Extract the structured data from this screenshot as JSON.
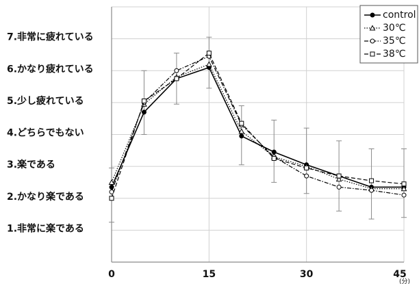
{
  "chart_data": {
    "type": "line",
    "title": "",
    "xlabel": "",
    "ylabel": "",
    "x_unit_label": "(分)",
    "x": [
      0,
      5,
      10,
      15,
      20,
      25,
      30,
      35,
      40,
      45
    ],
    "xlim": [
      0,
      45
    ],
    "ylim": [
      0,
      8
    ],
    "x_ticks": [
      "0",
      "15",
      "30",
      "45"
    ],
    "x_tick_values": [
      0,
      15,
      30,
      45
    ],
    "y_ticks": [
      {
        "value": 7,
        "label": "7.非常に疲れている"
      },
      {
        "value": 6,
        "label": "6.かなり疲れている"
      },
      {
        "value": 5,
        "label": "5.少し疲れている"
      },
      {
        "value": 4,
        "label": "4.どちらでもない"
      },
      {
        "value": 3,
        "label": "3.楽である"
      },
      {
        "value": 2,
        "label": "2.かなり楽である"
      },
      {
        "value": 1,
        "label": "1.非常に楽である"
      }
    ],
    "grid": true,
    "legend_position": "top-right",
    "series": [
      {
        "name": "control",
        "style": "solid",
        "marker": "filled-circle",
        "color": "#000000",
        "values": [
          2.35,
          4.7,
          5.75,
          6.1,
          3.95,
          3.45,
          3.05,
          2.7,
          2.35,
          2.35
        ]
      },
      {
        "name": "30℃",
        "style": "dotted",
        "marker": "triangle",
        "color": "#000000",
        "values": [
          2.5,
          4.95,
          5.8,
          6.2,
          4.1,
          3.3,
          3.0,
          2.6,
          2.3,
          2.3
        ]
      },
      {
        "name": "35℃",
        "style": "dashdot",
        "marker": "open-circle",
        "color": "#000000",
        "values": [
          2.2,
          5.0,
          6.0,
          6.45,
          4.3,
          3.3,
          2.7,
          2.35,
          2.25,
          2.1
        ]
      },
      {
        "name": "38℃",
        "style": "dashed",
        "marker": "open-square",
        "color": "#000000",
        "values": [
          2.0,
          5.05,
          5.75,
          6.55,
          4.35,
          3.25,
          2.95,
          2.7,
          2.55,
          2.45
        ]
      }
    ],
    "error_bars": {
      "x": [
        0,
        5,
        10,
        15,
        20,
        25,
        30,
        35,
        40,
        45
      ],
      "low": [
        1.25,
        4.0,
        4.95,
        5.45,
        3.05,
        2.5,
        2.15,
        1.6,
        1.35,
        1.4
      ],
      "high": [
        2.95,
        6.0,
        6.55,
        7.05,
        4.9,
        4.45,
        4.2,
        3.8,
        3.55,
        3.55
      ]
    }
  }
}
